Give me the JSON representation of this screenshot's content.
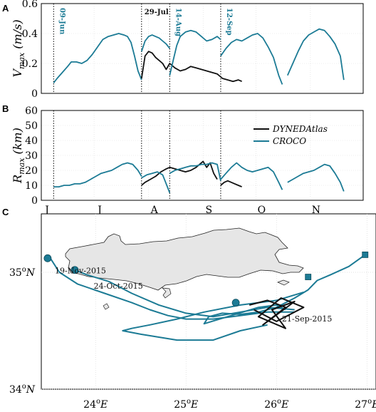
{
  "colors": {
    "croco": "#1c7b95",
    "dyned": "#111111",
    "land": "#e6e6e6",
    "grid": "#d9d9d9"
  },
  "panels": {
    "a": "A",
    "b": "B",
    "c": "C"
  },
  "events": [
    {
      "label": "09-Jun",
      "day": 7,
      "color": "#1c7b95"
    },
    {
      "label": "29-Jul",
      "day": 57,
      "color": "#111111"
    },
    {
      "label": "14-Aug",
      "day": 73,
      "color": "#1c7b95"
    },
    {
      "label": "12-Sep",
      "day": 102,
      "color": "#1c7b95"
    }
  ],
  "legend": {
    "dyned": "DYNEDAtlas",
    "croco": "CROCO"
  },
  "months": [
    "J",
    "J",
    "A",
    "S",
    "O",
    "N"
  ],
  "chart_data": [
    {
      "type": "line",
      "panel": "A",
      "ylabel": "V_max (m/s)",
      "ylim": [
        0,
        0.6
      ],
      "yticks": [
        0,
        0.2,
        0.4,
        0.6
      ],
      "xlim_days_since_jun1": [
        0,
        183
      ],
      "series": [
        {
          "name": "CROCO",
          "segment": 1,
          "x": [
            7,
            9,
            12,
            15,
            17,
            20,
            23,
            26,
            29,
            32,
            35,
            38,
            41,
            44,
            47,
            49,
            51,
            53,
            55,
            57
          ],
          "y": [
            0.07,
            0.1,
            0.14,
            0.18,
            0.21,
            0.21,
            0.2,
            0.22,
            0.26,
            0.31,
            0.36,
            0.38,
            0.39,
            0.4,
            0.39,
            0.38,
            0.34,
            0.25,
            0.15,
            0.09
          ]
        },
        {
          "name": "DYNEDAtlas",
          "segment": 1,
          "x": [
            57,
            59,
            61,
            63,
            65,
            67,
            69,
            71,
            73,
            76,
            79,
            82,
            85,
            88,
            91,
            94,
            97,
            100,
            103,
            106,
            109,
            112,
            114
          ],
          "y": [
            0.1,
            0.25,
            0.28,
            0.27,
            0.24,
            0.22,
            0.2,
            0.16,
            0.2,
            0.17,
            0.15,
            0.16,
            0.18,
            0.17,
            0.16,
            0.15,
            0.14,
            0.13,
            0.1,
            0.09,
            0.08,
            0.09,
            0.08
          ]
        },
        {
          "name": "CROCO",
          "segment": 2,
          "x": [
            57,
            59,
            61,
            63,
            65,
            67,
            69,
            71,
            73
          ],
          "y": [
            0.28,
            0.35,
            0.38,
            0.39,
            0.38,
            0.37,
            0.35,
            0.33,
            0.3
          ]
        },
        {
          "name": "CROCO",
          "segment": 3,
          "x": [
            73,
            75,
            77,
            79,
            82,
            85,
            88,
            91,
            94,
            97,
            100,
            102
          ],
          "y": [
            0.12,
            0.22,
            0.32,
            0.38,
            0.41,
            0.42,
            0.41,
            0.38,
            0.35,
            0.36,
            0.38,
            0.36
          ]
        },
        {
          "name": "CROCO",
          "segment": 4,
          "x": [
            102,
            105,
            108,
            111,
            114,
            117,
            120,
            123,
            126,
            129,
            132,
            135,
            137
          ],
          "y": [
            0.25,
            0.3,
            0.34,
            0.36,
            0.35,
            0.37,
            0.39,
            0.4,
            0.37,
            0.31,
            0.24,
            0.12,
            0.06
          ]
        },
        {
          "name": "CROCO",
          "segment": 5,
          "x": [
            140,
            143,
            146,
            149,
            152,
            155,
            158,
            161,
            164,
            167,
            170,
            172
          ],
          "y": [
            0.12,
            0.2,
            0.28,
            0.35,
            0.39,
            0.41,
            0.43,
            0.42,
            0.38,
            0.33,
            0.25,
            0.09
          ]
        }
      ]
    },
    {
      "type": "line",
      "panel": "B",
      "ylabel": "R_max (km)",
      "ylim": [
        0,
        60
      ],
      "yticks": [
        0,
        10,
        20,
        30,
        40,
        50,
        60
      ],
      "xlim_days_since_jun1": [
        0,
        183
      ],
      "xtick_labels": [
        "J",
        "J",
        "A",
        "S",
        "O",
        "N"
      ],
      "series": [
        {
          "name": "CROCO",
          "segment": 1,
          "x": [
            7,
            10,
            13,
            16,
            19,
            22,
            25,
            28,
            31,
            34,
            37,
            40,
            43,
            46,
            49,
            52,
            55,
            57
          ],
          "y": [
            9,
            9,
            10,
            10,
            11,
            11,
            12,
            14,
            16,
            18,
            19,
            20,
            22,
            24,
            25,
            24,
            20,
            16
          ]
        },
        {
          "name": "DYNEDAtlas",
          "segment": 1,
          "x": [
            57,
            59,
            62,
            65,
            68,
            71,
            73,
            76,
            79,
            82,
            85,
            88,
            90,
            92,
            94,
            96,
            98,
            100
          ],
          "y": [
            10,
            12,
            14,
            16,
            19,
            21,
            22,
            21,
            20,
            19,
            20,
            22,
            24,
            26,
            22,
            25,
            18,
            14
          ]
        },
        {
          "name": "DYNEDAtlas",
          "segment": 2,
          "x": [
            102,
            104,
            106,
            108,
            110,
            112,
            114
          ],
          "y": [
            10,
            12,
            13,
            12,
            11,
            10,
            9
          ]
        },
        {
          "name": "CROCO",
          "segment": 2,
          "x": [
            57,
            60,
            63,
            66,
            69,
            71,
            73
          ],
          "y": [
            15,
            17,
            18,
            19,
            17,
            11,
            5
          ]
        },
        {
          "name": "CROCO",
          "segment": 3,
          "x": [
            73,
            76,
            79,
            82,
            85,
            88,
            91,
            94,
            97,
            100,
            102
          ],
          "y": [
            18,
            20,
            21,
            22,
            23,
            23,
            24,
            24,
            25,
            24,
            13
          ]
        },
        {
          "name": "CROCO",
          "segment": 4,
          "x": [
            102,
            105,
            108,
            111,
            114,
            117,
            120,
            123,
            126,
            129,
            132,
            135,
            137
          ],
          "y": [
            14,
            18,
            22,
            25,
            22,
            20,
            19,
            20,
            21,
            22,
            19,
            12,
            7
          ]
        },
        {
          "name": "CROCO",
          "segment": 5,
          "x": [
            140,
            143,
            146,
            149,
            152,
            155,
            158,
            161,
            164,
            167,
            170,
            172
          ],
          "y": [
            12,
            14,
            16,
            18,
            19,
            20,
            22,
            24,
            23,
            18,
            12,
            6
          ]
        }
      ]
    },
    {
      "type": "scatter",
      "panel": "C",
      "xlabel_ticks": [
        "24^oE",
        "25^oE",
        "26^oE",
        "27^oE"
      ],
      "ylabel_ticks": [
        "34^oN",
        "35^oN"
      ],
      "xlim": [
        23.4,
        27.1
      ],
      "ylim": [
        34,
        35.5
      ],
      "track_labels": [
        {
          "text": "19-Nov-2015",
          "lon": 23.55,
          "lat": 34.99
        },
        {
          "text": "24-Oct-2015",
          "lon": 23.98,
          "lat": 34.86
        },
        {
          "text": "21-Sep-2015",
          "lon": 26.06,
          "lat": 34.58
        }
      ],
      "start_markers": [
        {
          "shape": "circle",
          "lon": 23.47,
          "lat": 35.12
        },
        {
          "shape": "circle",
          "lon": 23.77,
          "lat": 35.02
        },
        {
          "shape": "circle",
          "lon": 25.55,
          "lat": 34.74
        },
        {
          "shape": "square",
          "lon": 26.35,
          "lat": 34.96
        },
        {
          "shape": "square",
          "lon": 26.98,
          "lat": 35.15
        }
      ],
      "series": [
        {
          "name": "CROCO",
          "lon": [
            26.98,
            26.8,
            26.6,
            26.45,
            26.35,
            26.2,
            26.0,
            25.8,
            25.6,
            25.4,
            25.25,
            25.2,
            25.5,
            25.8,
            26.0,
            26.1
          ],
          "lat": [
            35.15,
            35.05,
            34.98,
            34.93,
            34.85,
            34.78,
            34.7,
            34.66,
            34.64,
            34.65,
            34.62,
            34.56,
            34.63,
            34.7,
            34.72,
            34.68
          ]
        },
        {
          "name": "CROCO",
          "lon": [
            26.3,
            26.0,
            25.6,
            25.2,
            24.9,
            24.6,
            24.4,
            24.3,
            24.5,
            24.9,
            25.3,
            25.6,
            25.9
          ],
          "lat": [
            34.83,
            34.76,
            34.72,
            34.66,
            34.6,
            34.55,
            34.52,
            34.5,
            34.47,
            34.42,
            34.42,
            34.5,
            34.55
          ]
        },
        {
          "name": "CROCO",
          "lon": [
            23.5,
            23.6,
            23.8,
            24.1,
            24.4,
            24.6,
            24.8,
            25.0,
            25.3,
            25.6,
            25.9,
            26.2
          ],
          "lat": [
            35.12,
            35.0,
            34.9,
            34.82,
            34.74,
            34.68,
            34.63,
            34.6,
            34.6,
            34.63,
            34.66,
            34.66
          ]
        },
        {
          "name": "CROCO",
          "lon": [
            23.77,
            23.9,
            24.15,
            24.4,
            24.7,
            25.0,
            25.3,
            25.6,
            25.9,
            26.2
          ],
          "lat": [
            35.02,
            34.98,
            34.92,
            34.82,
            34.72,
            34.65,
            34.62,
            34.66,
            34.7,
            34.68
          ]
        },
        {
          "name": "DYNEDAtlas",
          "lon": [
            25.7,
            25.9,
            26.1,
            25.85,
            26.2,
            25.95,
            26.1,
            25.8,
            26.05,
            26.3,
            26.0,
            25.75
          ],
          "lat": [
            34.72,
            34.76,
            34.7,
            34.55,
            34.75,
            34.68,
            34.52,
            34.62,
            34.78,
            34.7,
            34.58,
            34.68
          ]
        }
      ]
    }
  ]
}
